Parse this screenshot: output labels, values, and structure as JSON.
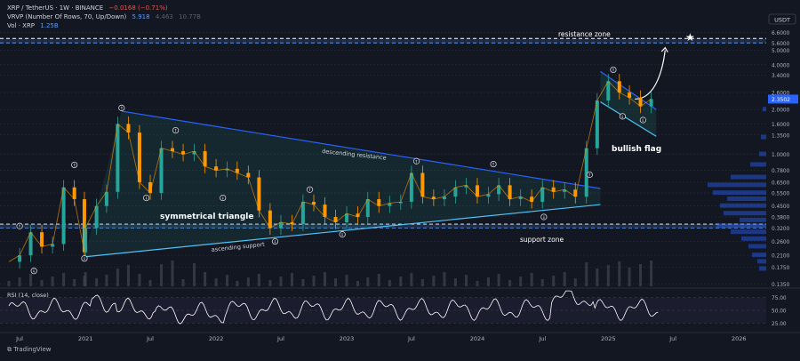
{
  "legend": {
    "line1": {
      "symbol": "XRP / TetherUS · 1W · BINANCE",
      "change": "−0.0168 (−0.71%)"
    },
    "line2": {
      "label": "VRVP (Number Of Rows, 70, Up/Down)",
      "v1": "5.918",
      "v2": "4.463",
      "v3": "10.77B"
    },
    "line3": {
      "label": "Vol · XRP",
      "value": "1.25B"
    }
  },
  "currency_label": "USDT",
  "branding": "TradingView",
  "colors": {
    "up": "#26a69a",
    "down": "#ef5350",
    "price": "#ff9800",
    "line": "#2962ff",
    "zone": "#5b9cf6",
    "bg": "#131722"
  },
  "chart_data": {
    "type": "candlestick",
    "y_scale": "log",
    "price_ticks": [
      "6.6000",
      "5.6000",
      "5.0000",
      "4.0000",
      "3.4000",
      "2.6000",
      "2.0000",
      "1.6000",
      "1.3500",
      "1.0000",
      "0.7800",
      "0.6500",
      "0.5500",
      "0.4500",
      "0.3800",
      "0.3200",
      "0.2600",
      "0.2100",
      "0.1750",
      "0.1350"
    ],
    "last_price": "2.3502",
    "x_ticks": [
      "Jul",
      "2021",
      "Jul",
      "2022",
      "Jul",
      "2023",
      "Jul",
      "2024",
      "Jul",
      "2025",
      "Jul",
      "2026"
    ],
    "annotations": {
      "resistance_zone": "resistance zone",
      "symmetrical_triangle": "symmetrical triangle",
      "descending_resistance": "descending resistance",
      "ascending_support": "ascending support",
      "support_zone": "support zone",
      "bullish_flag": "bullish flag"
    },
    "levels": {
      "resistance_zone": [
        5.6,
        6.0
      ],
      "support_zone": [
        0.32,
        0.34
      ]
    },
    "price_path": [
      [
        "2020-06",
        0.19
      ],
      [
        "2020-07",
        0.21
      ],
      [
        "2020-08",
        0.3
      ],
      [
        "2020-09",
        0.24
      ],
      [
        "2020-10",
        0.25
      ],
      [
        "2020-11",
        0.6
      ],
      [
        "2020-12",
        0.5
      ],
      [
        "2020-12-29",
        0.22
      ],
      [
        "2021-01",
        0.32
      ],
      [
        "2021-02",
        0.45
      ],
      [
        "2021-03",
        0.56
      ],
      [
        "2021-04",
        1.6
      ],
      [
        "2021-05",
        1.4
      ],
      [
        "2021-06",
        0.65
      ],
      [
        "2021-07",
        0.55
      ],
      [
        "2021-08",
        1.1
      ],
      [
        "2021-09",
        1.05
      ],
      [
        "2021-10",
        1.0
      ],
      [
        "2021-11",
        1.05
      ],
      [
        "2021-12",
        0.83
      ],
      [
        "2022-01",
        0.78
      ],
      [
        "2022-02",
        0.8
      ],
      [
        "2022-03",
        0.75
      ],
      [
        "2022-04",
        0.7
      ],
      [
        "2022-05",
        0.42
      ],
      [
        "2022-06",
        0.32
      ],
      [
        "2022-07",
        0.35
      ],
      [
        "2022-08",
        0.34
      ],
      [
        "2022-09",
        0.48
      ],
      [
        "2022-10",
        0.46
      ],
      [
        "2022-11",
        0.38
      ],
      [
        "2022-12",
        0.35
      ],
      [
        "2023-01",
        0.4
      ],
      [
        "2023-02",
        0.38
      ],
      [
        "2023-03",
        0.5
      ],
      [
        "2023-04",
        0.45
      ],
      [
        "2023-05",
        0.47
      ],
      [
        "2023-06",
        0.48
      ],
      [
        "2023-07",
        0.75
      ],
      [
        "2023-08",
        0.52
      ],
      [
        "2023-09",
        0.5
      ],
      [
        "2023-10",
        0.52
      ],
      [
        "2023-11",
        0.6
      ],
      [
        "2023-12",
        0.62
      ],
      [
        "2024-01",
        0.52
      ],
      [
        "2024-02",
        0.54
      ],
      [
        "2024-03",
        0.62
      ],
      [
        "2024-04",
        0.5
      ],
      [
        "2024-05",
        0.52
      ],
      [
        "2024-06",
        0.48
      ],
      [
        "2024-07",
        0.6
      ],
      [
        "2024-08",
        0.56
      ],
      [
        "2024-09",
        0.58
      ],
      [
        "2024-10",
        0.52
      ],
      [
        "2024-11",
        1.1
      ],
      [
        "2024-12",
        2.3
      ],
      [
        "2025-01",
        3.1
      ],
      [
        "2025-02",
        2.6
      ],
      [
        "2025-03",
        2.4
      ],
      [
        "2025-04",
        2.1
      ],
      [
        "2025-05",
        2.35
      ]
    ],
    "rsi": {
      "label": "RSI (14, close)",
      "ticks": [
        "75.00",
        "50.00",
        "25.00"
      ]
    }
  }
}
